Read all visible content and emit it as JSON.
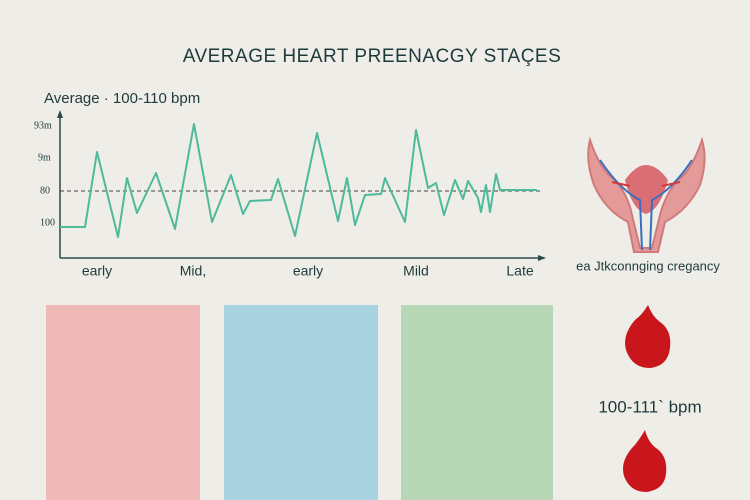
{
  "title": "AVERAGE HEART PREENACGY STAÇES",
  "subtitle": "Average · 100-110 bpm",
  "chart": {
    "y_labels": [
      "93m",
      "9m",
      "80",
      "100"
    ],
    "x_labels": [
      "early",
      "Mid,",
      "early",
      "Mild",
      "Late"
    ]
  },
  "side": {
    "caption": "ea Jtkconnging cregancy",
    "bpm": "100-111` bpm"
  }
}
